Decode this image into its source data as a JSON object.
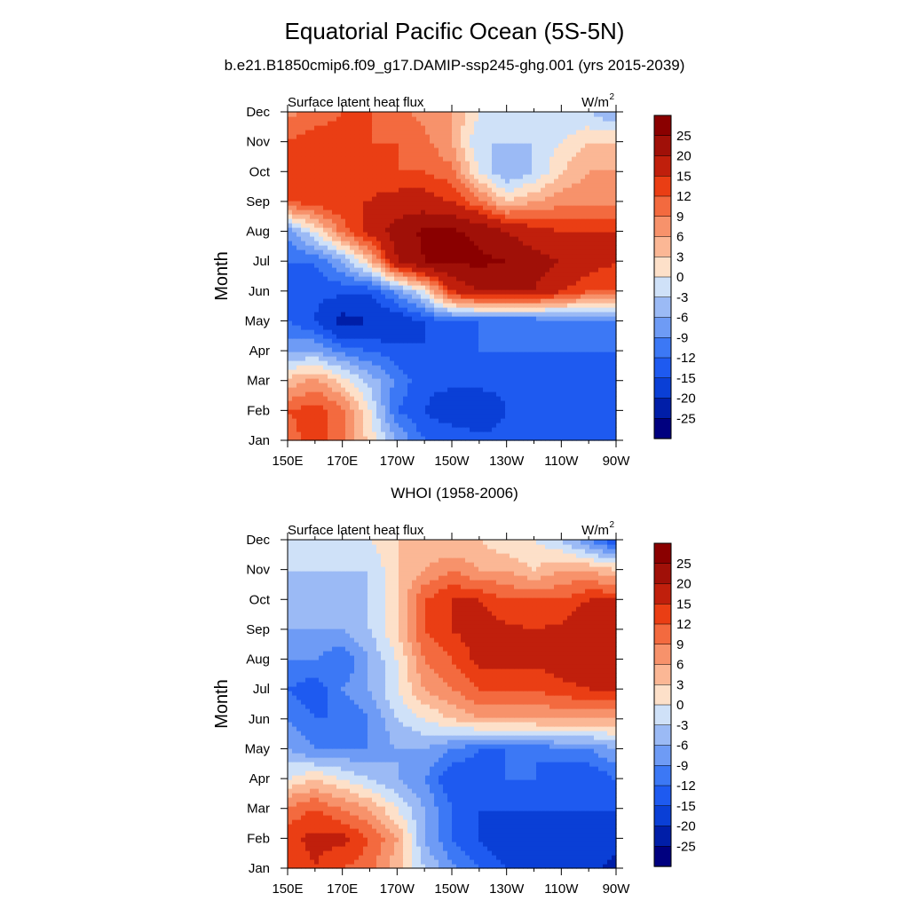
{
  "figure": {
    "title": "Equatorial Pacific Ocean (5S-5N)",
    "subtitle": "b.e21.B1850cmip6.f09_g17.DAMIP-ssp245-ghg.001 (yrs 2015-2039)",
    "lower_title": "WHOI (1958-2006)"
  },
  "colors": {
    "levels": [
      -25,
      -20,
      -15,
      -12,
      -9,
      -6,
      -3,
      0,
      3,
      6,
      9,
      12,
      15,
      20,
      25
    ],
    "fills": [
      "#00007f",
      "#001ea8",
      "#0a3fd6",
      "#1e5af0",
      "#3c78f5",
      "#6e9bf5",
      "#9bbaf5",
      "#cfe1f8",
      "#fde0c9",
      "#fbb795",
      "#f7926b",
      "#f36a3f",
      "#ea3e14",
      "#c01f0c",
      "#a01008",
      "#8a0000"
    ]
  },
  "chart_data": [
    {
      "type": "heatmap",
      "panel": "model",
      "left_label": "Surface latent heat flux",
      "right_label": "W/m",
      "units_superscript": "2",
      "ylabel": "Month",
      "x_ticks": [
        "150E",
        "170E",
        "170W",
        "150W",
        "130W",
        "110W",
        "90W"
      ],
      "x_degrees_east": [
        150,
        170,
        190,
        210,
        230,
        250,
        270
      ],
      "xlim": [
        150,
        270
      ],
      "y_ticks": [
        "Jan",
        "Feb",
        "Mar",
        "Apr",
        "May",
        "Jun",
        "Jul",
        "Aug",
        "Sep",
        "Oct",
        "Nov",
        "Dec"
      ],
      "colorbar_labels": [
        "25",
        "20",
        "15",
        "12",
        "9",
        "6",
        "3",
        "0",
        "-3",
        "-6",
        "-9",
        "-12",
        "-15",
        "-20",
        "-25"
      ],
      "months_rows": [
        [
          10,
          14,
          10,
          2,
          -6,
          -12,
          -12,
          -14,
          -14,
          -14,
          -14,
          -14,
          -15
        ],
        [
          12,
          14,
          10,
          0,
          -12,
          -15,
          -18,
          -18,
          -15,
          -14,
          -15,
          -14,
          -14
        ],
        [
          4,
          7,
          2,
          -4,
          -10,
          -14,
          -14,
          -14,
          -14,
          -14,
          -14,
          -14,
          -14
        ],
        [
          -6,
          -6,
          -10,
          -12,
          -14,
          -15,
          -15,
          -12,
          -12,
          -12,
          -12,
          -12,
          -12
        ],
        [
          -12,
          -15,
          -22,
          -20,
          -18,
          -15,
          -12,
          -12,
          -12,
          -12,
          -10,
          -10,
          -10
        ],
        [
          -12,
          -14,
          -14,
          -14,
          -8,
          0,
          15,
          20,
          20,
          20,
          15,
          12,
          12
        ],
        [
          -12,
          -12,
          -6,
          3,
          20,
          25,
          26,
          26,
          25,
          22,
          20,
          17,
          15
        ],
        [
          -8,
          0,
          10,
          17,
          22,
          26,
          26,
          24,
          20,
          17,
          15,
          15,
          15
        ],
        [
          12,
          14,
          15,
          15,
          17,
          17,
          15,
          10,
          3,
          6,
          8,
          8,
          8
        ],
        [
          14,
          15,
          15,
          14,
          12,
          12,
          10,
          0,
          -6,
          -3,
          3,
          6,
          6
        ],
        [
          12,
          14,
          14,
          12,
          12,
          10,
          6,
          -3,
          -3,
          -3,
          0,
          3,
          3
        ],
        [
          8,
          10,
          12,
          12,
          10,
          8,
          6,
          0,
          -3,
          -3,
          -3,
          -3,
          -6
        ]
      ]
    },
    {
      "type": "heatmap",
      "panel": "observations",
      "left_label": "Surface latent heat flux",
      "right_label": "W/m",
      "units_superscript": "2",
      "ylabel": "Month",
      "x_ticks": [
        "150E",
        "170E",
        "170W",
        "150W",
        "130W",
        "110W",
        "90W"
      ],
      "x_degrees_east": [
        150,
        170,
        190,
        210,
        230,
        250,
        270
      ],
      "xlim": [
        150,
        270
      ],
      "y_ticks": [
        "Jan",
        "Feb",
        "Mar",
        "Apr",
        "May",
        "Jun",
        "Jul",
        "Aug",
        "Sep",
        "Oct",
        "Nov",
        "Dec"
      ],
      "colorbar_labels": [
        "25",
        "20",
        "15",
        "12",
        "9",
        "6",
        "3",
        "0",
        "-3",
        "-6",
        "-9",
        "-12",
        "-15",
        "-20",
        "-25"
      ],
      "months_rows": [
        [
          12,
          15,
          12,
          10,
          4,
          -3,
          -8,
          -12,
          -15,
          -15,
          -15,
          -18,
          -22
        ],
        [
          14,
          16,
          16,
          12,
          6,
          -6,
          -12,
          -15,
          -18,
          -18,
          -18,
          -18,
          -18
        ],
        [
          10,
          12,
          9,
          6,
          0,
          -6,
          -12,
          -15,
          -15,
          -15,
          -15,
          -15,
          -15
        ],
        [
          0,
          3,
          0,
          -3,
          -6,
          -9,
          -15,
          -15,
          -12,
          -12,
          -15,
          -15,
          -12
        ],
        [
          -6,
          -9,
          -9,
          -9,
          -6,
          -6,
          -9,
          -12,
          -12,
          -12,
          -9,
          -9,
          -6
        ],
        [
          -9,
          -12,
          -12,
          -9,
          -3,
          0,
          3,
          6,
          6,
          6,
          6,
          6,
          6
        ],
        [
          -12,
          -14,
          -9,
          -6,
          0,
          6,
          9,
          12,
          12,
          12,
          14,
          15,
          15
        ],
        [
          -9,
          -9,
          -12,
          -6,
          0,
          9,
          12,
          16,
          16,
          16,
          17,
          17,
          17
        ],
        [
          -6,
          -6,
          -6,
          -3,
          3,
          12,
          15,
          17,
          16,
          15,
          16,
          20,
          20
        ],
        [
          -6,
          -6,
          -6,
          -3,
          3,
          12,
          15,
          15,
          12,
          12,
          12,
          15,
          15
        ],
        [
          -3,
          -3,
          -3,
          -3,
          3,
          6,
          9,
          6,
          6,
          3,
          6,
          6,
          3
        ],
        [
          -3,
          0,
          -3,
          0,
          3,
          3,
          3,
          3,
          0,
          0,
          -3,
          -9,
          -15
        ]
      ]
    }
  ]
}
